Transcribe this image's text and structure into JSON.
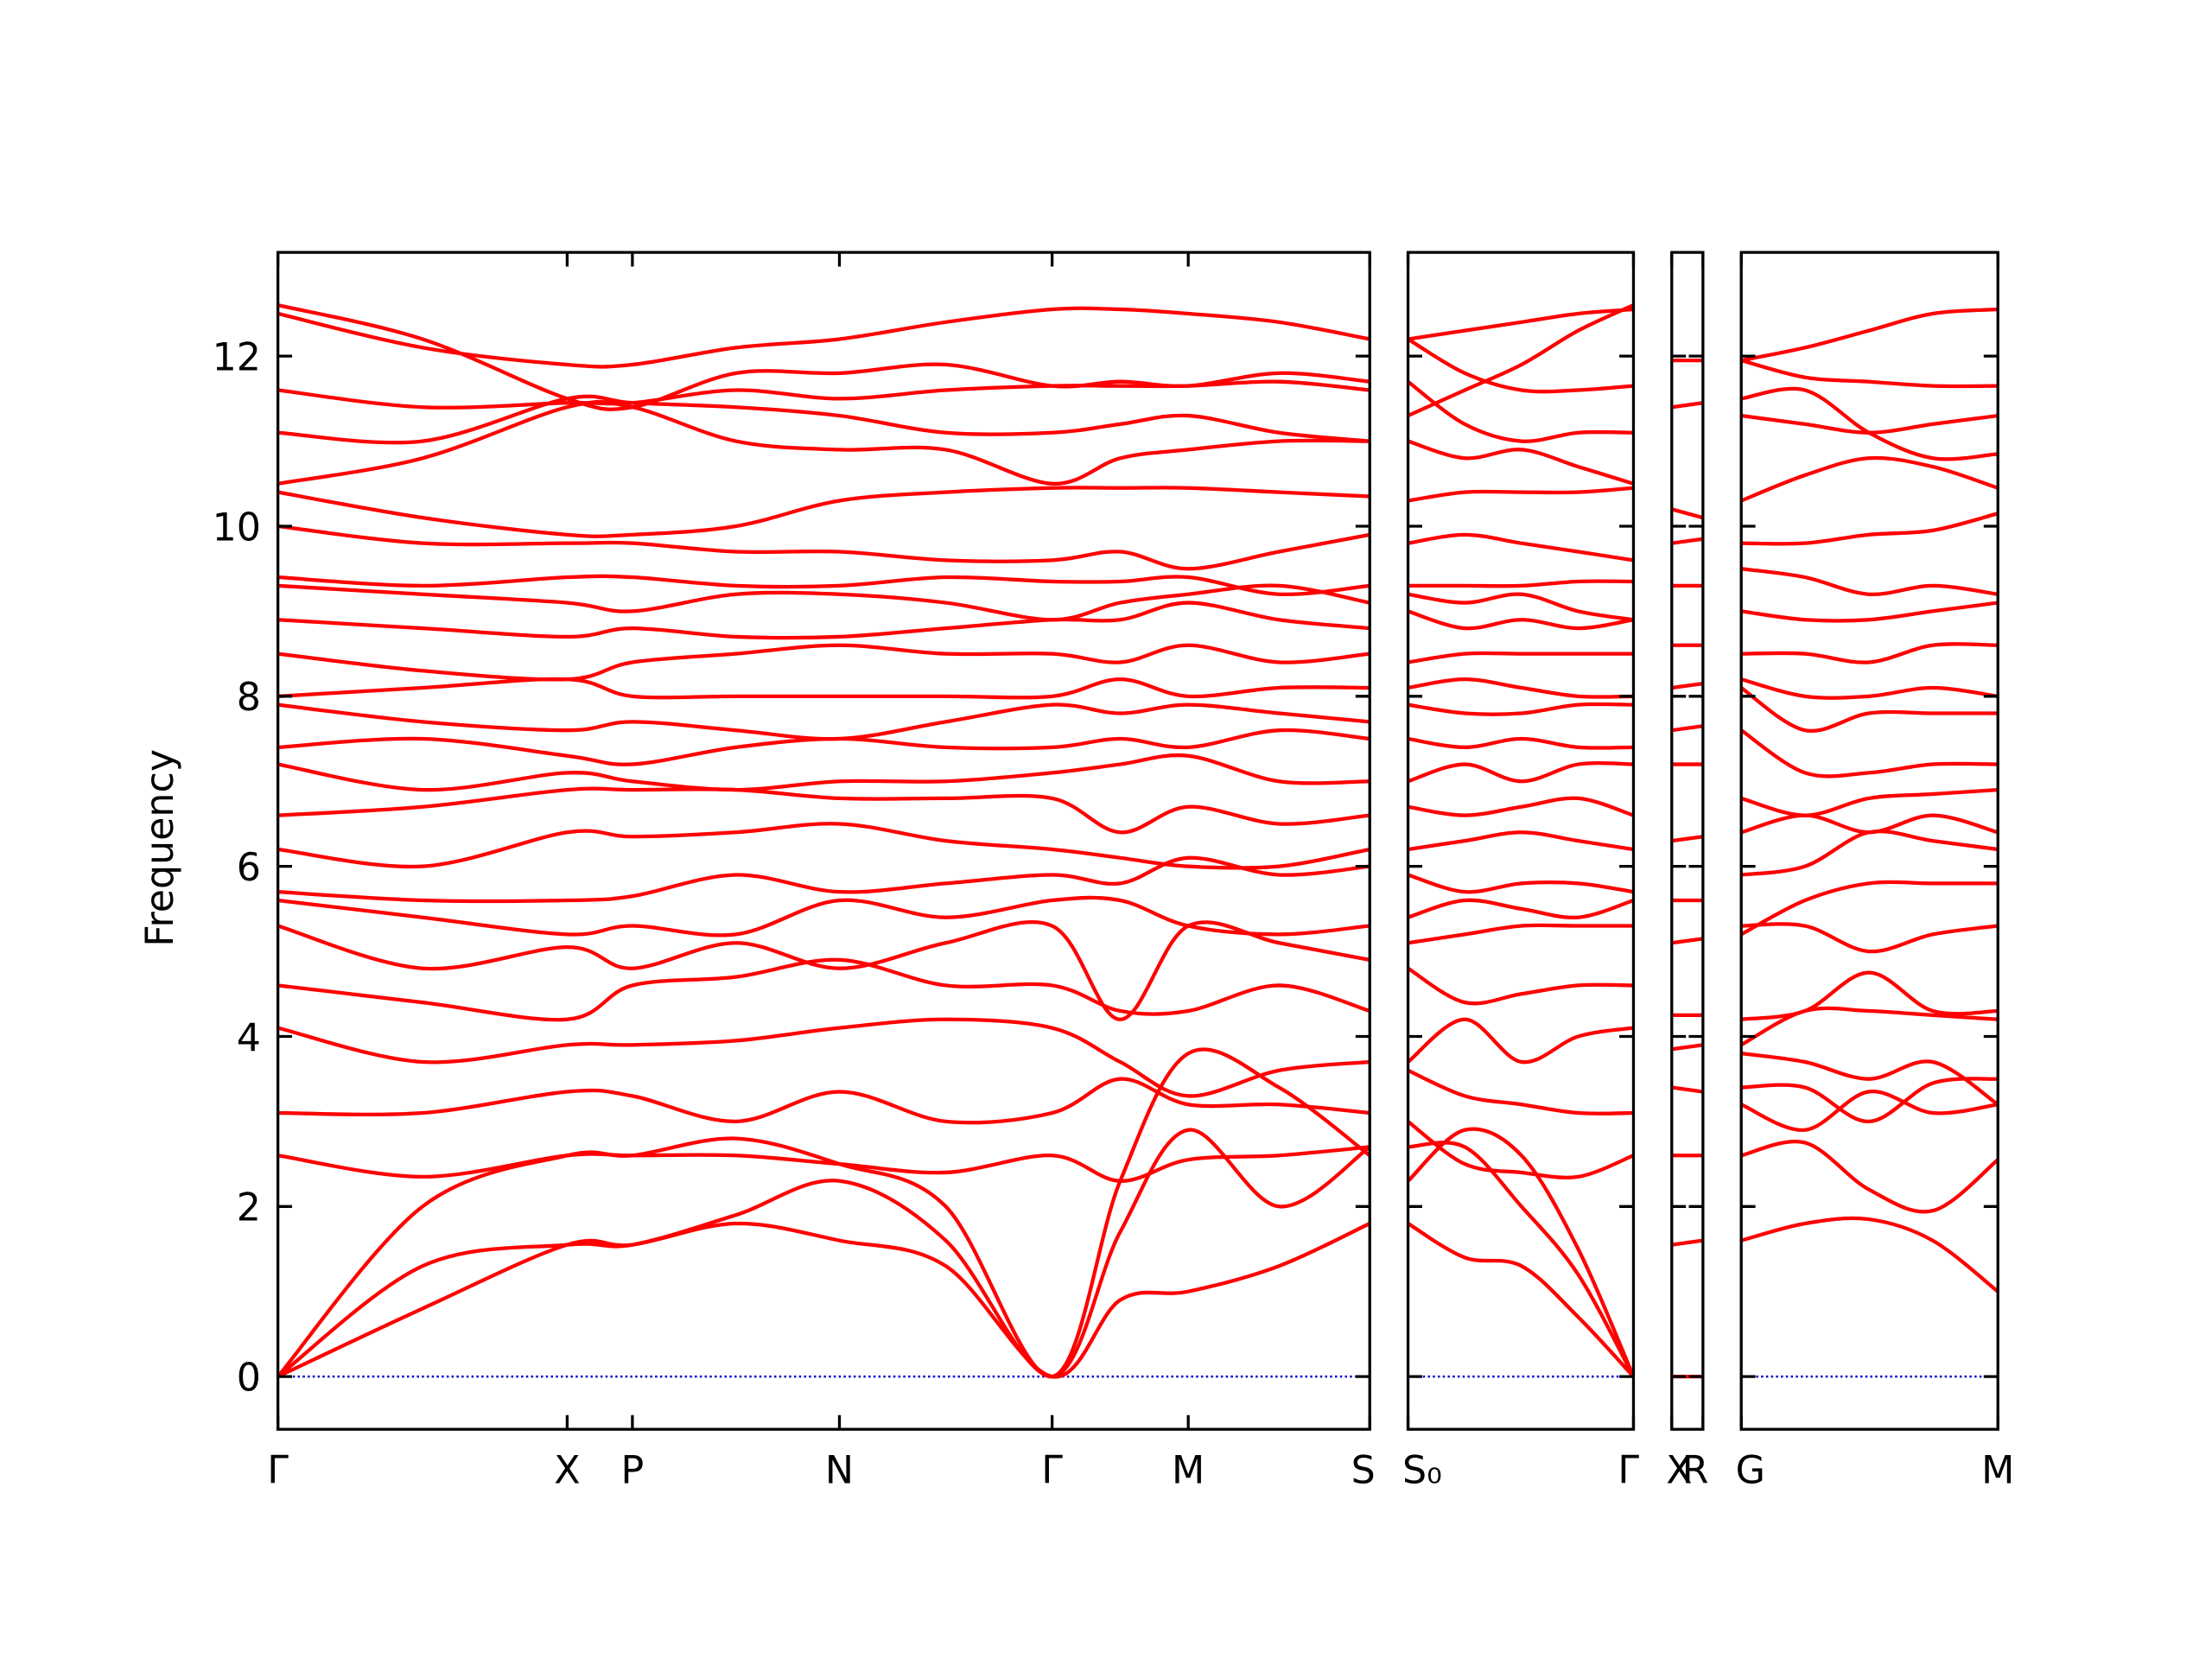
{
  "chart_data": {
    "type": "line",
    "ylabel": "Frequency",
    "ylim": [
      -0.62,
      13.22
    ],
    "yticks": [
      0,
      2,
      4,
      6,
      8,
      10,
      12
    ],
    "color": "#ff0000",
    "hline": 0,
    "hline_color": "#0000cc",
    "panels": [
      {
        "xlim": [
          0,
          7.7
        ],
        "ytick_labels": true,
        "xticks": [
          {
            "value": 0,
            "label": "Γ"
          },
          {
            "value": 2.04,
            "label": "X"
          },
          {
            "value": 2.5,
            "label": "P"
          },
          {
            "value": 3.96,
            "label": "N"
          },
          {
            "value": 5.46,
            "label": "Γ"
          },
          {
            "value": 6.42,
            "label": "M"
          },
          {
            "value": 7.7,
            "label": "S"
          }
        ],
        "x": [
          0,
          1.02,
          2.04,
          2.5,
          3.23,
          3.96,
          4.71,
          5.46,
          5.94,
          6.42,
          7.06,
          7.7
        ],
        "bands": [
          [
            0,
            0.8,
            1.55,
            1.55,
            1.8,
            1.6,
            1.3,
            0,
            0.9,
            1.0,
            1.3,
            1.8
          ],
          [
            0,
            1.3,
            1.55,
            1.55,
            1.9,
            2.3,
            1.6,
            0,
            1.7,
            2.9,
            2.0,
            2.7
          ],
          [
            0,
            2.0,
            2.6,
            2.6,
            2.8,
            2.5,
            2.0,
            0,
            2.3,
            3.8,
            3.4,
            2.6
          ],
          [
            2.6,
            2.35,
            2.6,
            2.6,
            2.6,
            2.5,
            2.4,
            2.6,
            2.3,
            2.55,
            2.6,
            2.7
          ],
          [
            3.1,
            3.1,
            3.35,
            3.3,
            3.0,
            3.35,
            3.0,
            3.1,
            3.5,
            3.2,
            3.2,
            3.1
          ],
          [
            4.1,
            3.7,
            3.9,
            3.9,
            3.95,
            4.1,
            4.2,
            4.1,
            3.7,
            3.3,
            3.6,
            3.7
          ],
          [
            4.6,
            4.4,
            4.2,
            4.6,
            4.7,
            4.9,
            4.6,
            4.6,
            4.3,
            4.3,
            4.6,
            4.3
          ],
          [
            5.3,
            4.8,
            5.05,
            4.8,
            5.1,
            4.8,
            5.1,
            5.3,
            4.2,
            5.3,
            5.1,
            4.9
          ],
          [
            5.6,
            5.4,
            5.2,
            5.3,
            5.2,
            5.6,
            5.4,
            5.6,
            5.6,
            5.3,
            5.2,
            5.3
          ],
          [
            5.7,
            5.6,
            5.6,
            5.65,
            5.9,
            5.7,
            5.8,
            5.9,
            5.8,
            6.1,
            5.9,
            6.0
          ],
          [
            6.2,
            6.0,
            6.4,
            6.35,
            6.4,
            6.5,
            6.3,
            6.2,
            6.1,
            6.0,
            6.0,
            6.2
          ],
          [
            6.6,
            6.7,
            6.9,
            6.9,
            6.9,
            6.8,
            6.8,
            6.8,
            6.4,
            6.7,
            6.5,
            6.6
          ],
          [
            7.2,
            6.9,
            7.1,
            7.0,
            6.9,
            7.0,
            7.0,
            7.1,
            7.2,
            7.3,
            7.0,
            7.0
          ],
          [
            7.4,
            7.5,
            7.3,
            7.2,
            7.4,
            7.5,
            7.4,
            7.4,
            7.5,
            7.4,
            7.6,
            7.5
          ],
          [
            7.9,
            7.7,
            7.6,
            7.7,
            7.6,
            7.5,
            7.7,
            7.9,
            7.8,
            7.9,
            7.8,
            7.7
          ],
          [
            8.0,
            8.1,
            8.2,
            8.0,
            8.0,
            8.0,
            8.0,
            8.0,
            8.2,
            8.0,
            8.1,
            8.1
          ],
          [
            8.5,
            8.3,
            8.2,
            8.4,
            8.5,
            8.6,
            8.5,
            8.5,
            8.4,
            8.6,
            8.4,
            8.5
          ],
          [
            8.9,
            8.8,
            8.7,
            8.8,
            8.7,
            8.7,
            8.8,
            8.9,
            8.9,
            9.1,
            8.9,
            8.8
          ],
          [
            9.3,
            9.2,
            9.1,
            9.0,
            9.2,
            9.2,
            9.1,
            8.9,
            9.1,
            9.2,
            9.3,
            9.1
          ],
          [
            9.4,
            9.3,
            9.4,
            9.4,
            9.3,
            9.3,
            9.4,
            9.35,
            9.35,
            9.4,
            9.2,
            9.3
          ],
          [
            10.0,
            9.8,
            9.8,
            9.8,
            9.7,
            9.7,
            9.6,
            9.6,
            9.7,
            9.5,
            9.7,
            9.9
          ],
          [
            10.4,
            10.1,
            9.9,
            9.9,
            10.0,
            10.3,
            10.4,
            10.45,
            10.45,
            10.45,
            10.4,
            10.35
          ],
          [
            10.5,
            10.8,
            11.4,
            11.4,
            11.0,
            10.9,
            10.9,
            10.5,
            10.8,
            10.9,
            11.0,
            11.0
          ],
          [
            11.1,
            11.0,
            11.5,
            11.45,
            11.4,
            11.3,
            11.1,
            11.1,
            11.2,
            11.3,
            11.1,
            11.0
          ],
          [
            11.6,
            11.4,
            11.45,
            11.45,
            11.6,
            11.5,
            11.6,
            11.65,
            11.65,
            11.65,
            11.7,
            11.6
          ],
          [
            12.5,
            12.1,
            11.9,
            11.9,
            12.1,
            12.2,
            12.4,
            12.55,
            12.55,
            12.5,
            12.4,
            12.2
          ],
          [
            12.6,
            12.2,
            11.5,
            11.4,
            11.8,
            11.8,
            11.9,
            11.65,
            11.7,
            11.65,
            11.8,
            11.7
          ]
        ]
      },
      {
        "xlim": [
          0,
          1.59
        ],
        "ytick_labels": false,
        "xticks": [
          {
            "value": 0,
            "label": "S₀"
          },
          {
            "value": 1.59,
            "label": "Γ"
          }
        ],
        "x": [
          0,
          0.4,
          0.8,
          1.2,
          1.59
        ],
        "bands": [
          [
            1.8,
            1.4,
            1.3,
            0.7,
            0
          ],
          [
            2.3,
            2.9,
            2.6,
            1.5,
            0
          ],
          [
            2.7,
            2.7,
            2.0,
            1.2,
            0
          ],
          [
            3.0,
            2.5,
            2.4,
            2.35,
            2.6
          ],
          [
            3.6,
            3.3,
            3.2,
            3.1,
            3.1
          ],
          [
            3.7,
            4.2,
            3.7,
            4.0,
            4.1
          ],
          [
            4.8,
            4.4,
            4.5,
            4.6,
            4.6
          ],
          [
            5.1,
            5.2,
            5.3,
            5.3,
            5.3
          ],
          [
            5.4,
            5.6,
            5.5,
            5.4,
            5.6
          ],
          [
            5.9,
            5.7,
            5.8,
            5.8,
            5.7
          ],
          [
            6.2,
            6.3,
            6.4,
            6.3,
            6.2
          ],
          [
            6.7,
            6.6,
            6.7,
            6.8,
            6.6
          ],
          [
            7.0,
            7.2,
            7.0,
            7.2,
            7.2
          ],
          [
            7.5,
            7.4,
            7.5,
            7.4,
            7.4
          ],
          [
            7.9,
            7.8,
            7.8,
            7.9,
            7.9
          ],
          [
            8.1,
            8.2,
            8.1,
            8.0,
            8.0
          ],
          [
            8.4,
            8.5,
            8.5,
            8.5,
            8.5
          ],
          [
            9.0,
            8.8,
            8.9,
            8.8,
            8.9
          ],
          [
            9.2,
            9.1,
            9.2,
            9.0,
            8.9
          ],
          [
            9.3,
            9.3,
            9.3,
            9.35,
            9.35
          ],
          [
            9.8,
            9.9,
            9.8,
            9.7,
            9.6
          ],
          [
            10.3,
            10.4,
            10.4,
            10.4,
            10.45
          ],
          [
            11.0,
            10.8,
            10.9,
            10.7,
            10.5
          ],
          [
            11.7,
            11.2,
            11.0,
            11.1,
            11.1
          ],
          [
            12.2,
            11.8,
            11.6,
            11.6,
            11.65
          ],
          [
            12.2,
            12.3,
            12.4,
            12.5,
            12.55
          ],
          [
            11.3,
            11.6,
            11.9,
            12.3,
            12.6
          ]
        ]
      },
      {
        "xlim": [
          0,
          0.22
        ],
        "ytick_labels": false,
        "xticks": [
          {
            "value": 0,
            "label": "X"
          },
          {
            "value": 0.22,
            "label": "R"
          }
        ],
        "x": [
          0,
          0.22
        ],
        "bands": [
          [
            0,
            0
          ],
          [
            1.55,
            1.6
          ],
          [
            2.6,
            2.6
          ],
          [
            3.4,
            3.35
          ],
          [
            3.85,
            3.9
          ],
          [
            4.25,
            4.25
          ],
          [
            5.1,
            5.15
          ],
          [
            5.6,
            5.6
          ],
          [
            6.3,
            6.35
          ],
          [
            7.2,
            7.2
          ],
          [
            7.6,
            7.65
          ],
          [
            8.1,
            8.15
          ],
          [
            8.6,
            8.6
          ],
          [
            9.3,
            9.3
          ],
          [
            9.8,
            9.85
          ],
          [
            10.2,
            10.1
          ],
          [
            11.4,
            11.45
          ],
          [
            11.95,
            11.95
          ]
        ]
      },
      {
        "xlim": [
          0,
          1.81
        ],
        "ytick_labels": false,
        "xticks": [
          {
            "value": 0,
            "label": "G"
          },
          {
            "value": 1.81,
            "label": "M"
          }
        ],
        "x": [
          0,
          0.45,
          0.9,
          1.35,
          1.81
        ],
        "bands": [
          [
            1.6,
            1.8,
            1.85,
            1.6,
            1.0
          ],
          [
            2.6,
            2.75,
            2.2,
            1.95,
            2.55
          ],
          [
            3.2,
            2.9,
            3.35,
            3.1,
            3.2
          ],
          [
            3.4,
            3.4,
            3.0,
            3.45,
            3.5
          ],
          [
            3.8,
            3.7,
            3.5,
            3.7,
            3.2
          ],
          [
            3.9,
            4.3,
            4.3,
            4.25,
            4.2
          ],
          [
            4.2,
            4.3,
            4.75,
            4.3,
            4.3
          ],
          [
            5.3,
            5.3,
            5.0,
            5.2,
            5.3
          ],
          [
            5.2,
            5.6,
            5.8,
            5.8,
            5.8
          ],
          [
            5.9,
            6.0,
            6.4,
            6.3,
            6.2
          ],
          [
            6.4,
            6.6,
            6.4,
            6.6,
            6.4
          ],
          [
            6.8,
            6.6,
            6.8,
            6.85,
            6.9
          ],
          [
            7.6,
            7.1,
            7.1,
            7.2,
            7.2
          ],
          [
            8.1,
            7.6,
            7.8,
            7.8,
            7.8
          ],
          [
            8.2,
            8.0,
            8.0,
            8.1,
            8.0
          ],
          [
            8.5,
            8.5,
            8.4,
            8.6,
            8.6
          ],
          [
            9.0,
            8.9,
            8.9,
            9.0,
            9.1
          ],
          [
            9.5,
            9.4,
            9.2,
            9.3,
            9.2
          ],
          [
            9.8,
            9.8,
            9.9,
            9.95,
            10.15
          ],
          [
            10.3,
            10.6,
            10.8,
            10.7,
            10.45
          ],
          [
            11.3,
            11.2,
            11.1,
            11.2,
            11.3
          ],
          [
            11.5,
            11.6,
            11.1,
            10.8,
            10.85
          ],
          [
            11.95,
            11.75,
            11.7,
            11.65,
            11.65
          ],
          [
            11.95,
            12.1,
            12.3,
            12.5,
            12.55
          ]
        ]
      }
    ]
  }
}
